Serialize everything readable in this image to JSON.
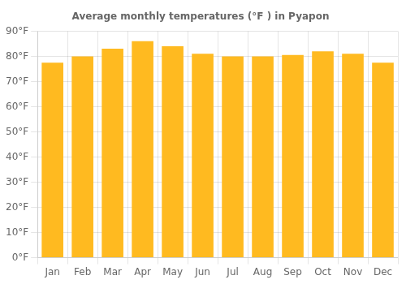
{
  "chart_data": {
    "type": "bar",
    "title": "Average monthly temperatures (°F ) in Pyapon",
    "categories": [
      "Jan",
      "Feb",
      "Mar",
      "Apr",
      "May",
      "Jun",
      "Jul",
      "Aug",
      "Sep",
      "Oct",
      "Nov",
      "Dec"
    ],
    "values": [
      77.5,
      80.0,
      83.0,
      86.0,
      84.0,
      81.0,
      80.0,
      80.0,
      80.5,
      82.0,
      81.0,
      77.5
    ],
    "color": "#FFBA20",
    "ylim": [
      0,
      90
    ],
    "yticks": [
      {
        "value": 0,
        "label": "0°F"
      },
      {
        "value": 10,
        "label": "10°F"
      },
      {
        "value": 20,
        "label": "20°F"
      },
      {
        "value": 30,
        "label": "30°F"
      },
      {
        "value": 40,
        "label": "40°F"
      },
      {
        "value": 50,
        "label": "50°F"
      },
      {
        "value": 60,
        "label": "60°F"
      },
      {
        "value": 70,
        "label": "70°F"
      },
      {
        "value": 80,
        "label": "80°F"
      },
      {
        "value": 90,
        "label": "90°F"
      }
    ],
    "grid": true
  }
}
